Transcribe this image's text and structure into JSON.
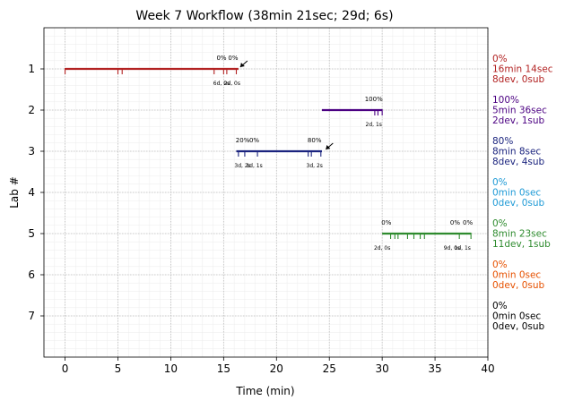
{
  "chart_data": {
    "type": "timeline",
    "title": "Week 7 Workflow (38min 21sec; 29d; 6s)",
    "xlabel": "Time (min)",
    "ylabel": "Lab #",
    "xlim": [
      -2,
      40
    ],
    "ylim": [
      0,
      8
    ],
    "x_ticks": [
      0,
      5,
      10,
      15,
      20,
      25,
      30,
      35,
      40
    ],
    "y_ticks": [
      1,
      2,
      3,
      4,
      5,
      6,
      7
    ],
    "grid": true,
    "labs": [
      {
        "lab": 1,
        "color": "#b22222",
        "start": 0,
        "end": 16.4,
        "ticks": [
          0,
          5.0,
          5.4,
          14.1,
          15.0,
          15.3,
          16.2
        ],
        "pct_labels": [
          {
            "x": 14.8,
            "text": "0%"
          },
          {
            "x": 15.9,
            "text": "0%"
          }
        ],
        "dev_labels": [
          {
            "x": 14.8,
            "text": "6d, 0s"
          },
          {
            "x": 15.8,
            "text": "2d, 0s"
          }
        ],
        "arrow_x": 16.4,
        "summary": [
          "0%",
          "16min 14sec",
          "8dev, 0sub"
        ]
      },
      {
        "lab": 2,
        "color": "#4b0082",
        "start": 24.3,
        "end": 30.0,
        "ticks": [
          29.3,
          29.6,
          30.0
        ],
        "pct_labels": [
          {
            "x": 29.2,
            "text": "100%"
          }
        ],
        "dev_labels": [
          {
            "x": 29.2,
            "text": "2d, 1s"
          }
        ],
        "summary": [
          "100%",
          "5min 36sec",
          "2dev, 1sub"
        ]
      },
      {
        "lab": 3,
        "color": "#1a237e",
        "start": 16.2,
        "end": 24.3,
        "ticks": [
          16.4,
          17.0,
          18.2,
          23.0,
          23.3,
          24.2
        ],
        "pct_labels": [
          {
            "x": 16.8,
            "text": "20%"
          },
          {
            "x": 17.9,
            "text": "0%"
          },
          {
            "x": 23.6,
            "text": "80%"
          }
        ],
        "dev_labels": [
          {
            "x": 16.8,
            "text": "3d, 2s"
          },
          {
            "x": 17.9,
            "text": "1d, 1s"
          },
          {
            "x": 23.6,
            "text": "3d, 2s"
          }
        ],
        "arrow_x": 24.5,
        "summary": [
          "80%",
          "8min 8sec",
          "8dev, 4sub"
        ]
      },
      {
        "lab": 4,
        "color": "#1e9ad6",
        "start": null,
        "end": null,
        "ticks": [],
        "pct_labels": [],
        "dev_labels": [],
        "summary": [
          "0%",
          "0min 0sec",
          "0dev, 0sub"
        ]
      },
      {
        "lab": 5,
        "color": "#2e8b2e",
        "start": 30.0,
        "end": 38.4,
        "ticks": [
          30.8,
          31.2,
          31.5,
          32.4,
          33.0,
          33.6,
          34.0,
          37.3,
          38.4
        ],
        "pct_labels": [
          {
            "x": 30.4,
            "text": "0%"
          },
          {
            "x": 36.9,
            "text": "0%"
          },
          {
            "x": 38.1,
            "text": "0%"
          }
        ],
        "dev_labels": [
          {
            "x": 30.0,
            "text": "2d, 0s"
          },
          {
            "x": 36.6,
            "text": "9d, 0s"
          },
          {
            "x": 37.6,
            "text": "1d, 1s"
          }
        ],
        "summary": [
          "0%",
          "8min 23sec",
          "11dev, 1sub"
        ]
      },
      {
        "lab": 6,
        "color": "#e65100",
        "start": null,
        "end": null,
        "ticks": [],
        "pct_labels": [],
        "dev_labels": [],
        "summary": [
          "0%",
          "0min 0sec",
          "0dev, 0sub"
        ]
      },
      {
        "lab": 7,
        "color": "#000000",
        "start": null,
        "end": null,
        "ticks": [],
        "pct_labels": [],
        "dev_labels": [],
        "summary": [
          "0%",
          "0min 0sec",
          "0dev, 0sub"
        ]
      }
    ]
  }
}
